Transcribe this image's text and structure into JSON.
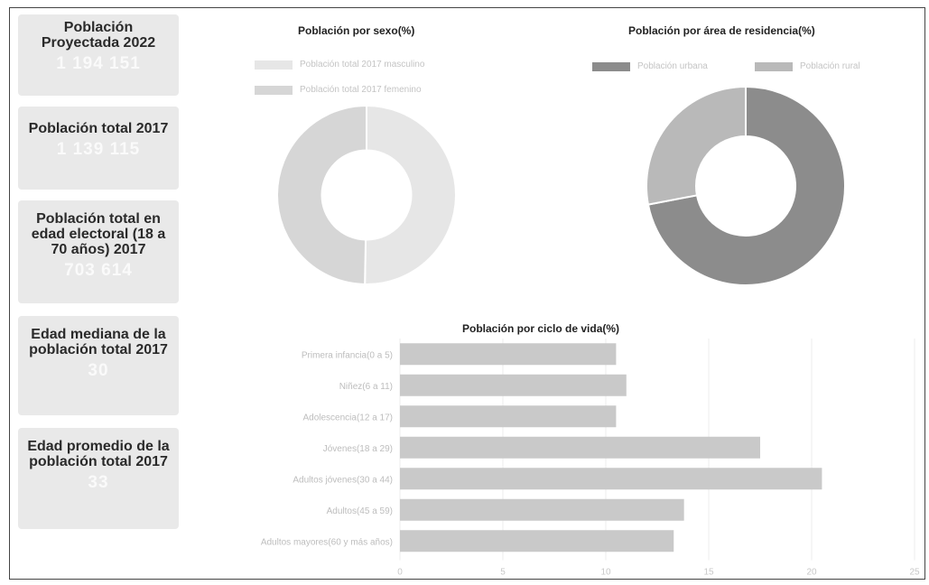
{
  "top_title": "",
  "cards": [
    {
      "label": "Población Proyectada 2022",
      "value": "1 194 151"
    },
    {
      "label": "Población total 2017",
      "value": "1 139 115"
    },
    {
      "label": "Población total en edad electoral (18 a 70 años) 2017",
      "value": "703 614"
    },
    {
      "label": "Edad mediana de la población total 2017",
      "value": "30"
    },
    {
      "label": "Edad promedio de la población total 2017",
      "value": "33"
    }
  ],
  "chart_data": [
    {
      "type": "pie",
      "title": "Población por sexo(%)",
      "donut": true,
      "legend_position": "top",
      "labels": [
        "Población total 2017 masculino",
        "Población total 2017 femenino"
      ],
      "values": [
        50.3,
        49.7
      ],
      "colors": [
        "#e6e6e6",
        "#d6d6d6"
      ]
    },
    {
      "type": "pie",
      "title": "Población por área de residencia(%)",
      "donut": true,
      "legend_position": "top",
      "labels": [
        "Población urbana",
        "Población rural"
      ],
      "values": [
        72,
        28
      ],
      "colors": [
        "#8c8c8c",
        "#b9b9b9"
      ]
    },
    {
      "type": "bar",
      "orientation": "horizontal",
      "title": "Población por ciclo de vida(%)",
      "categories": [
        "Primera infancia(0 a 5)",
        "Niñez(6 a 11)",
        "Adolescencia(12 a 17)",
        "Jóvenes(18 a 29)",
        "Adultos jóvenes(30 a 44)",
        "Adultos(45 a 59)",
        "Adultos mayores(60 y más años)"
      ],
      "values": [
        10.5,
        11,
        10.5,
        17.5,
        20.5,
        13.8,
        13.3
      ],
      "xlim": [
        0,
        25
      ],
      "xticks": [
        0,
        5,
        10,
        15,
        20,
        25
      ],
      "bar_color": "#c9c9c9",
      "grid": true
    }
  ]
}
